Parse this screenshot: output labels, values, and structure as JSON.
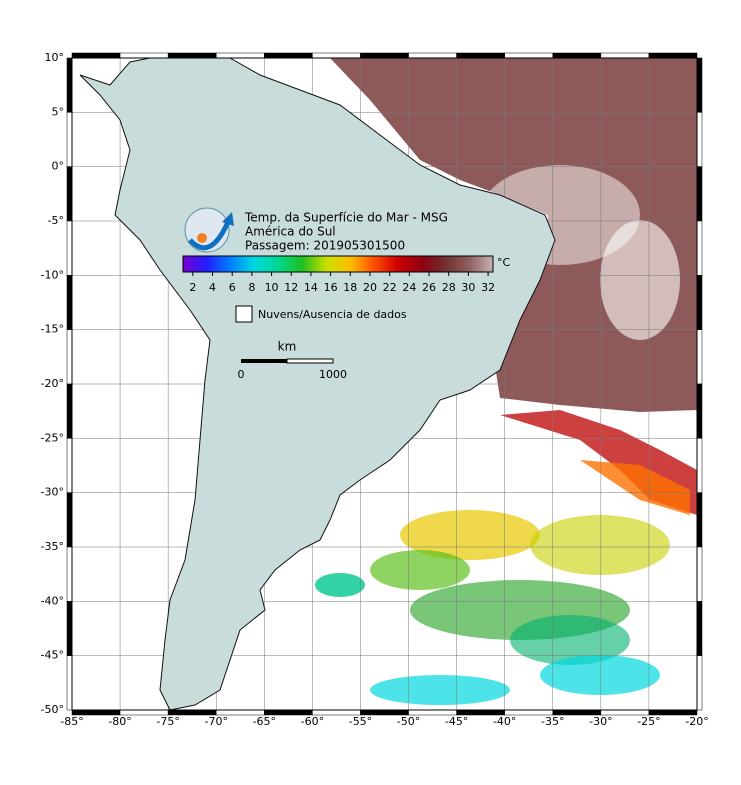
{
  "map": {
    "title_lines": [
      "Temp. da Superfície do Mar - MSG",
      "América do Sul",
      "Passagem: 201905301500"
    ],
    "xlim": [
      -85,
      -20
    ],
    "ylim": [
      -50,
      10
    ],
    "xticks": [
      {
        "value": -85,
        "label": "-85°"
      },
      {
        "value": -80,
        "label": "-80°"
      },
      {
        "value": -75,
        "label": "-75°"
      },
      {
        "value": -70,
        "label": "-70°"
      },
      {
        "value": -65,
        "label": "-65°"
      },
      {
        "value": -60,
        "label": "-60°"
      },
      {
        "value": -55,
        "label": "-55°"
      },
      {
        "value": -50,
        "label": "-50°"
      },
      {
        "value": -45,
        "label": "-45°"
      },
      {
        "value": -40,
        "label": "-40°"
      },
      {
        "value": -35,
        "label": "-35°"
      },
      {
        "value": -30,
        "label": "-30°"
      },
      {
        "value": -25,
        "label": "-25°"
      },
      {
        "value": -20,
        "label": "-20°"
      }
    ],
    "yticks": [
      {
        "value": 10,
        "label": "10°"
      },
      {
        "value": 5,
        "label": "5°"
      },
      {
        "value": 0,
        "label": "0°"
      },
      {
        "value": -5,
        "label": "-5°"
      },
      {
        "value": -10,
        "label": "-10°"
      },
      {
        "value": -15,
        "label": "-15°"
      },
      {
        "value": -20,
        "label": "-20°"
      },
      {
        "value": -25,
        "label": "-25°"
      },
      {
        "value": -30,
        "label": "-30°"
      },
      {
        "value": -35,
        "label": "-35°"
      },
      {
        "value": -40,
        "label": "-40°"
      },
      {
        "value": -45,
        "label": "-45°"
      },
      {
        "value": -50,
        "label": "-50°"
      }
    ],
    "colorbar": {
      "lim": [
        1,
        32.5
      ],
      "ticks": [
        2,
        4,
        6,
        8,
        10,
        12,
        14,
        16,
        18,
        20,
        22,
        24,
        26,
        28,
        30,
        32
      ],
      "unit": "°C",
      "colors": [
        "#7a00d0",
        "#2020ff",
        "#0080ff",
        "#00d8e0",
        "#00d890",
        "#20c020",
        "#c8e000",
        "#ffc000",
        "#ff5000",
        "#d00000",
        "#900010",
        "#703030",
        "#906060",
        "#c8b0b0"
      ]
    },
    "legend": "Nuvens/Ausencia de dados",
    "scale": {
      "unit": "km",
      "start": "0",
      "end": "1000"
    }
  }
}
